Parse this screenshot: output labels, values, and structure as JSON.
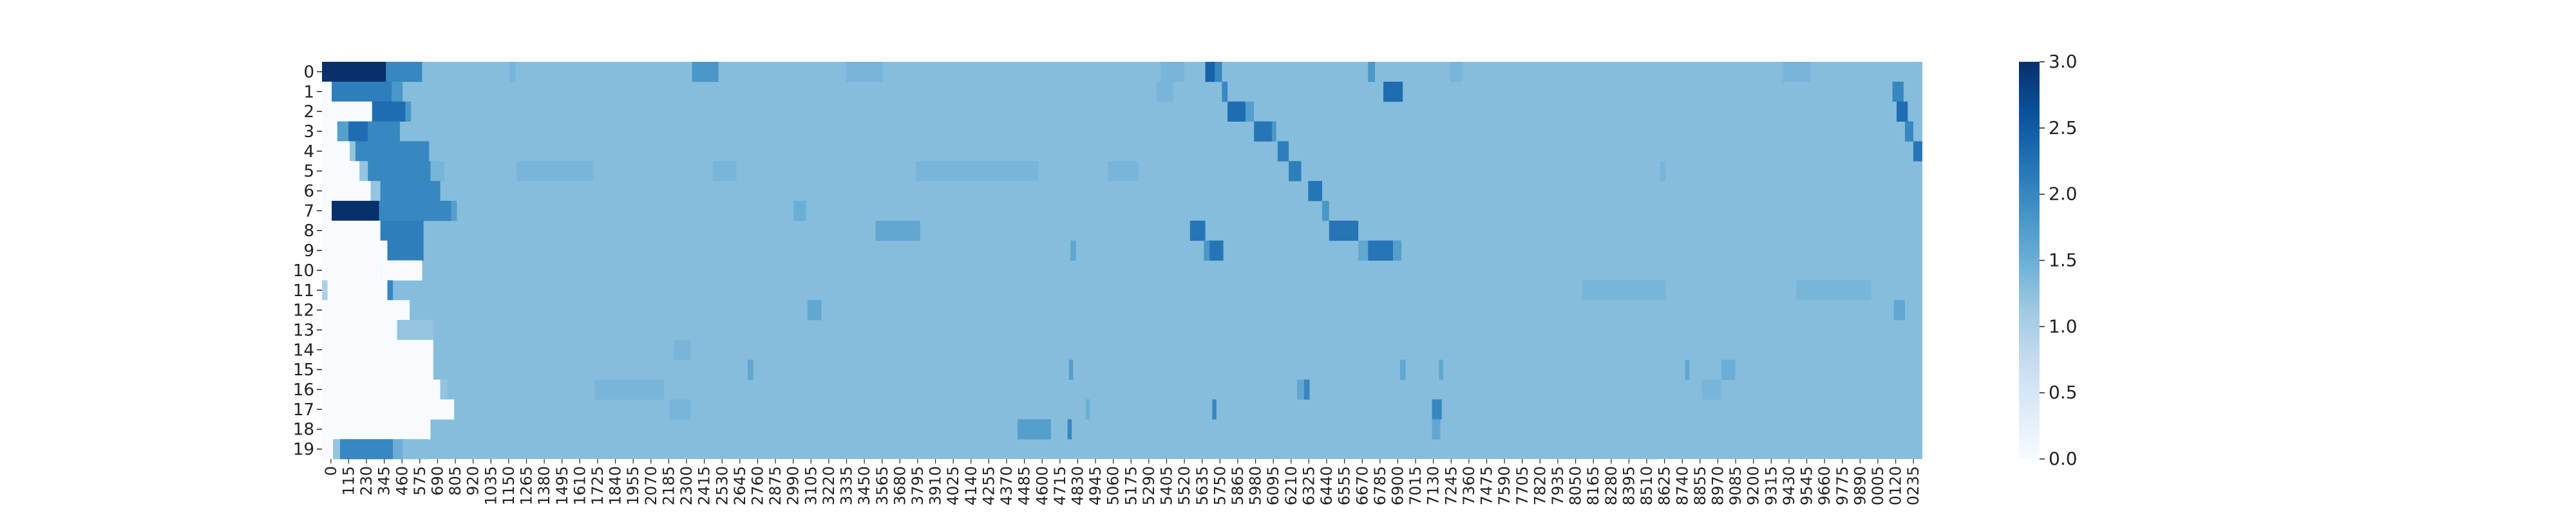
{
  "chart_data": {
    "type": "heatmap",
    "title": "",
    "xlabel": "",
    "ylabel": "",
    "rows": [
      "0",
      "1",
      "2",
      "3",
      "4",
      "5",
      "6",
      "7",
      "8",
      "9",
      "10",
      "11",
      "12",
      "13",
      "14",
      "15",
      "16",
      "17",
      "18",
      "19"
    ],
    "x_tick_labels": [
      "0",
      "115",
      "230",
      "345",
      "460",
      "575",
      "690",
      "805",
      "920",
      "1035",
      "1150",
      "1265",
      "1380",
      "1495",
      "1610",
      "1725",
      "1840",
      "1955",
      "2070",
      "2185",
      "2300",
      "2415",
      "2530",
      "2645",
      "2760",
      "2875",
      "2990",
      "3105",
      "3220",
      "3335",
      "3450",
      "3565",
      "3680",
      "3795",
      "3910",
      "4025",
      "4140",
      "4255",
      "4370",
      "4485",
      "4600",
      "4715",
      "4830",
      "4945",
      "5060",
      "5175",
      "5290",
      "5405",
      "5520",
      "5635",
      "5750",
      "5865",
      "5980",
      "6095",
      "6210",
      "6325",
      "6440",
      "6555",
      "6670",
      "6785",
      "6900",
      "7015",
      "7130",
      "7245",
      "7360",
      "7475",
      "7590",
      "7705",
      "7820",
      "7935",
      "8050",
      "8165",
      "8280",
      "8395",
      "8510",
      "8625",
      "8740",
      "8855",
      "8970",
      "9085",
      "9200",
      "9315",
      "9430",
      "9545",
      "9660",
      "9775",
      "9890",
      "0005",
      "0120",
      "0235"
    ],
    "x_range": [
      0,
      11505
    ],
    "baseline_value": 1.3,
    "value_range": [
      0,
      3.0
    ],
    "colorbar_ticks": [
      "0.0",
      "0.5",
      "1.0",
      "1.5",
      "2.0",
      "2.5",
      "3.0"
    ],
    "colormap": [
      "#f7fbff",
      "#deebf7",
      "#c6dbef",
      "#9ecae1",
      "#6baed6",
      "#4292c6",
      "#2171b5",
      "#08519c",
      "#08306b"
    ],
    "cells": [
      [
        0,
        0,
        460,
        3.0
      ],
      [
        0,
        460,
        720,
        2.0
      ],
      [
        0,
        2660,
        2850,
        1.8
      ],
      [
        0,
        6350,
        6420,
        2.4
      ],
      [
        0,
        6420,
        6470,
        2.0
      ],
      [
        0,
        7520,
        7570,
        1.8
      ],
      [
        0,
        1350,
        1390,
        1.4
      ],
      [
        0,
        3770,
        4030,
        1.4
      ],
      [
        0,
        6030,
        6200,
        1.4
      ],
      [
        0,
        8110,
        8200,
        1.4
      ],
      [
        0,
        10500,
        10700,
        1.4
      ],
      [
        1,
        0,
        70,
        0.0
      ],
      [
        1,
        70,
        500,
        2.1
      ],
      [
        1,
        500,
        580,
        1.8
      ],
      [
        1,
        6470,
        6510,
        2.0
      ],
      [
        1,
        7630,
        7770,
        2.3
      ],
      [
        1,
        11290,
        11370,
        2.0
      ],
      [
        1,
        6000,
        6120,
        1.4
      ],
      [
        2,
        0,
        360,
        0.0
      ],
      [
        2,
        360,
        600,
        2.3
      ],
      [
        2,
        600,
        640,
        1.8
      ],
      [
        2,
        6510,
        6640,
        2.3
      ],
      [
        2,
        6640,
        6700,
        1.7
      ],
      [
        2,
        11320,
        11400,
        2.3
      ],
      [
        3,
        0,
        110,
        0.0
      ],
      [
        3,
        110,
        190,
        1.7
      ],
      [
        3,
        190,
        330,
        2.3
      ],
      [
        3,
        330,
        560,
        2.0
      ],
      [
        3,
        6700,
        6830,
        2.2
      ],
      [
        3,
        6830,
        6860,
        1.8
      ],
      [
        3,
        11380,
        11440,
        2.0
      ],
      [
        4,
        0,
        200,
        0.0
      ],
      [
        4,
        200,
        240,
        1.2
      ],
      [
        4,
        240,
        770,
        2.0
      ],
      [
        4,
        6870,
        6950,
        2.1
      ],
      [
        4,
        11440,
        11505,
        2.2
      ],
      [
        5,
        0,
        270,
        0.0
      ],
      [
        5,
        270,
        330,
        1.2
      ],
      [
        5,
        330,
        780,
        2.0
      ],
      [
        5,
        780,
        880,
        1.4
      ],
      [
        5,
        1400,
        1950,
        1.4
      ],
      [
        5,
        2810,
        2980,
        1.4
      ],
      [
        5,
        4270,
        5150,
        1.4
      ],
      [
        5,
        5650,
        5870,
        1.4
      ],
      [
        5,
        6950,
        7040,
        2.1
      ],
      [
        5,
        9620,
        9660,
        1.4
      ],
      [
        6,
        0,
        350,
        0.0
      ],
      [
        6,
        350,
        420,
        1.2
      ],
      [
        6,
        420,
        850,
        2.0
      ],
      [
        6,
        7090,
        7190,
        2.2
      ],
      [
        7,
        0,
        70,
        0.0
      ],
      [
        7,
        70,
        410,
        3.0
      ],
      [
        7,
        410,
        930,
        2.0
      ],
      [
        7,
        930,
        970,
        1.7
      ],
      [
        7,
        3390,
        3480,
        1.5
      ],
      [
        7,
        7190,
        7240,
        1.8
      ],
      [
        8,
        0,
        420,
        0.0
      ],
      [
        8,
        420,
        730,
        2.1
      ],
      [
        8,
        3980,
        4300,
        1.6
      ],
      [
        8,
        6240,
        6350,
        2.2
      ],
      [
        8,
        7240,
        7450,
        2.2
      ],
      [
        9,
        0,
        470,
        0.0
      ],
      [
        9,
        470,
        730,
        2.1
      ],
      [
        9,
        6340,
        6380,
        1.8
      ],
      [
        9,
        6380,
        6480,
        2.2
      ],
      [
        9,
        7450,
        7520,
        1.6
      ],
      [
        9,
        7520,
        7700,
        2.2
      ],
      [
        9,
        7700,
        7760,
        1.7
      ],
      [
        9,
        5380,
        5420,
        1.6
      ],
      [
        10,
        0,
        430,
        0.0
      ],
      [
        10,
        430,
        720,
        0.0
      ],
      [
        11,
        0,
        40,
        1.0
      ],
      [
        11,
        40,
        470,
        0.0
      ],
      [
        11,
        470,
        510,
        2.0
      ],
      [
        11,
        9060,
        9660,
        1.4
      ],
      [
        11,
        10600,
        11140,
        1.4
      ],
      [
        12,
        0,
        630,
        0.0
      ],
      [
        12,
        3490,
        3590,
        1.6
      ],
      [
        12,
        11300,
        11380,
        1.6
      ],
      [
        13,
        0,
        540,
        0.0
      ],
      [
        13,
        540,
        800,
        1.2
      ],
      [
        14,
        0,
        800,
        0.0
      ],
      [
        14,
        2530,
        2650,
        1.4
      ],
      [
        15,
        0,
        800,
        0.0
      ],
      [
        15,
        3060,
        3100,
        1.6
      ],
      [
        15,
        5370,
        5400,
        1.7
      ],
      [
        15,
        7750,
        7790,
        1.6
      ],
      [
        15,
        8030,
        8060,
        1.6
      ],
      [
        15,
        9800,
        9830,
        1.6
      ],
      [
        15,
        10060,
        10160,
        1.5
      ],
      [
        16,
        0,
        850,
        0.0
      ],
      [
        16,
        850,
        900,
        1.2
      ],
      [
        16,
        1960,
        2460,
        1.4
      ],
      [
        16,
        7010,
        7060,
        1.6
      ],
      [
        16,
        7060,
        7100,
        2.0
      ],
      [
        16,
        9920,
        10060,
        1.4
      ],
      [
        17,
        0,
        950,
        0.0
      ],
      [
        17,
        2500,
        2650,
        1.4
      ],
      [
        17,
        5490,
        5520,
        1.5
      ],
      [
        17,
        6400,
        6430,
        2.0
      ],
      [
        17,
        7980,
        8050,
        2.0
      ],
      [
        18,
        0,
        720,
        0.0
      ],
      [
        18,
        720,
        780,
        0.0
      ],
      [
        18,
        5000,
        5240,
        1.7
      ],
      [
        18,
        5360,
        5390,
        2.0
      ],
      [
        18,
        7980,
        8040,
        1.6
      ],
      [
        19,
        0,
        80,
        0.0
      ],
      [
        19,
        80,
        130,
        1.2
      ],
      [
        19,
        130,
        510,
        2.0
      ],
      [
        19,
        510,
        580,
        1.5
      ],
      [
        19,
        580,
        760,
        1.3
      ],
      [
        19,
        9530,
        9600,
        1.3
      ]
    ]
  }
}
